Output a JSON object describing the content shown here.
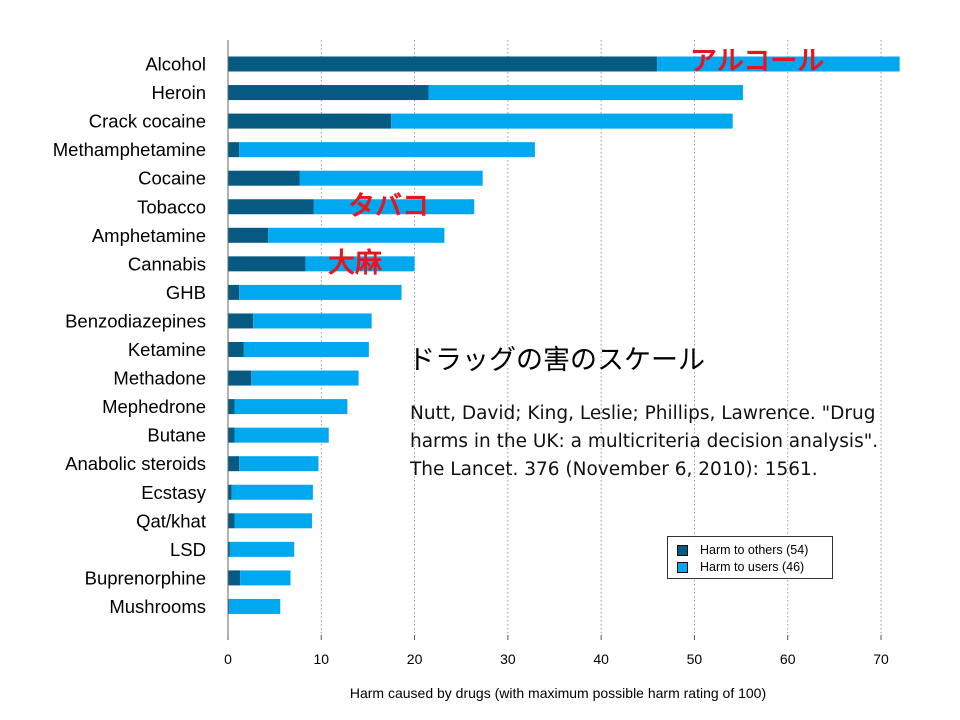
{
  "chart_data": {
    "type": "bar",
    "orientation": "horizontal",
    "stacked": true,
    "categories": [
      "Alcohol",
      "Heroin",
      "Crack cocaine",
      "Methamphetamine",
      "Cocaine",
      "Tobacco",
      "Amphetamine",
      "Cannabis",
      "GHB",
      "Benzodiazepines",
      "Ketamine",
      "Methadone",
      "Mephedrone",
      "Butane",
      "Anabolic steroids",
      "Ecstasy",
      "Qat/khat",
      "LSD",
      "Buprenorphine",
      "Mushrooms"
    ],
    "series": [
      {
        "name": "Harm to others (54)",
        "color": "#065a82",
        "values": [
          46,
          21.5,
          17.5,
          1.2,
          7.7,
          9.2,
          4.3,
          8.3,
          1.2,
          2.7,
          1.7,
          2.5,
          0.7,
          0.7,
          1.2,
          0.4,
          0.7,
          0.2,
          1.3,
          0.1
        ]
      },
      {
        "name": "Harm to users (46)",
        "color": "#00a8f0",
        "values": [
          26,
          33.7,
          36.6,
          31.7,
          19.6,
          17.2,
          18.9,
          11.7,
          17.4,
          12.7,
          13.4,
          11.5,
          12.1,
          10.1,
          8.5,
          8.7,
          8.3,
          6.9,
          5.4,
          5.5
        ]
      }
    ],
    "xlim": [
      0,
      70
    ],
    "xticks": [
      0,
      10,
      20,
      30,
      40,
      50,
      60,
      70
    ],
    "xlabel": "Harm caused by drugs (with maximum possible harm rating of 100)",
    "ylabel": "",
    "grid": "vertical dotted",
    "legend_position": "bottom-right"
  },
  "annotations": {
    "alcohol_jp": "アルコール",
    "tobacco_jp": "タバコ",
    "cannabis_jp": "大麻"
  },
  "title_jp": "ドラッグの害のスケール",
  "citation": "Nutt, David; King, Leslie; Phillips, Lawrence. \"Drug harms in the UK: a multicriteria decision analysis\". The Lancet. 376 (November 6, 2010): 1561."
}
